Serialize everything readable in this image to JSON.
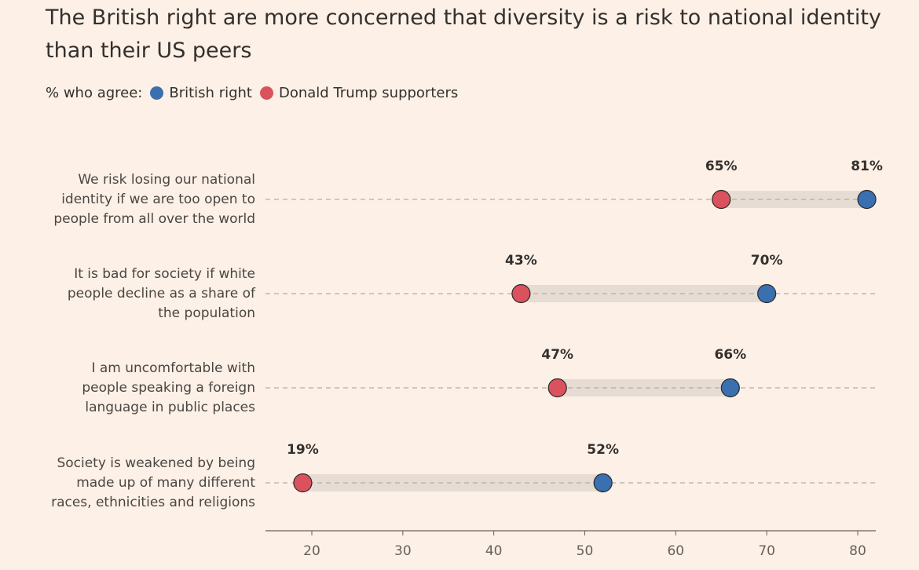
{
  "chart_data": {
    "type": "dumbbell",
    "title": "The British right are more concerned that diversity is a risk to national identity than their US peers",
    "legend_prefix": "% who agree:",
    "legend_placement": "top-left",
    "series": [
      {
        "name": "British right",
        "color": "#3a6fb0",
        "values": [
          81,
          70,
          66,
          52
        ]
      },
      {
        "name": "Donald Trump supporters",
        "color": "#d9525e",
        "values": [
          65,
          43,
          47,
          19
        ]
      }
    ],
    "categories": [
      [
        "We risk losing our national",
        "identity if we are too open to",
        "people from all over the world"
      ],
      [
        "It is bad for society if white",
        "people decline as a share of",
        "the population"
      ],
      [
        "I am uncomfortable with",
        "people speaking a foreign",
        "language in public places"
      ],
      [
        "Society is weakened by being",
        "made up of many different",
        "races, ethnicities and religions"
      ]
    ],
    "value_labels": {
      "British right": [
        "81%",
        "70%",
        "66%",
        "52%"
      ],
      "Donald Trump supporters": [
        "65%",
        "43%",
        "47%",
        "19%"
      ]
    },
    "xticks": [
      20,
      30,
      40,
      50,
      60,
      70,
      80
    ],
    "xlim": [
      15,
      82
    ],
    "grid": false,
    "range_bar_color": "#e6dcd3"
  }
}
